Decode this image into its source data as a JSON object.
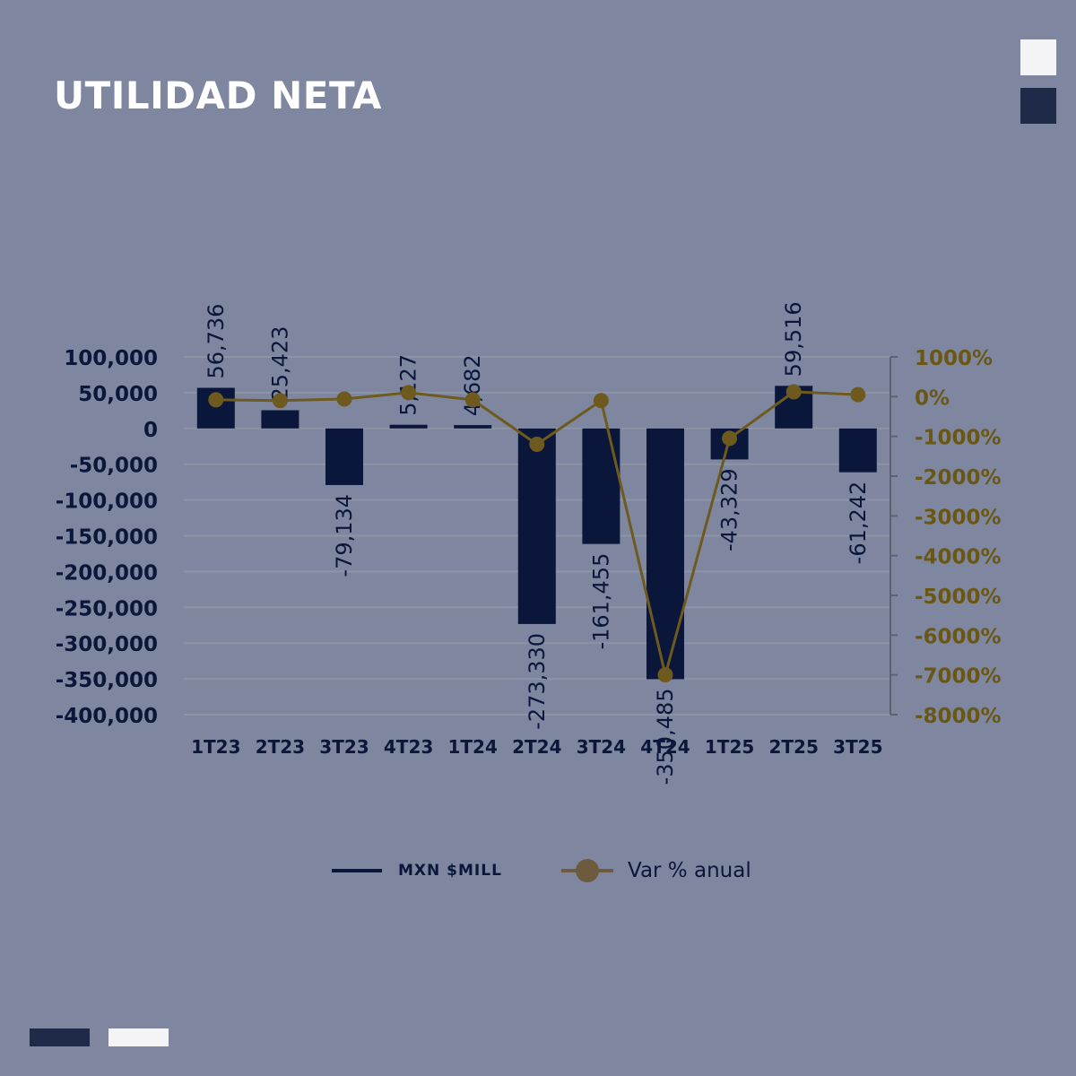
{
  "title": "UTILIDAD NETA",
  "colors": {
    "background": "#7e879f",
    "bar": "#0b173a",
    "line": "#6e5a1e",
    "marker": "#6e5a1e",
    "right_axis_text": "#6b5714",
    "left_axis_text": "#0b173a",
    "grid": "#8d94a6"
  },
  "chart_data": {
    "type": "bar",
    "title": "UTILIDAD NETA",
    "categories": [
      "1T23",
      "2T23",
      "3T23",
      "4T23",
      "1T24",
      "2T24",
      "3T24",
      "4T24",
      "1T25",
      "2T25",
      "3T25"
    ],
    "series": [
      {
        "name": "MXN $MILL",
        "type": "bar",
        "axis": "left",
        "values": [
          56736,
          25423,
          -79134,
          5127,
          4682,
          -273330,
          -161455,
          -350485,
          -43329,
          59516,
          -61242
        ],
        "labels": [
          "56,736",
          "25,423",
          "-79,134",
          "5,127",
          "4,682",
          "-273,330",
          "-161,455",
          "-350,485",
          "-43,329",
          "59,516",
          "-61,242"
        ]
      },
      {
        "name": "Var % anual",
        "type": "line",
        "axis": "right",
        "values": [
          -80,
          -100,
          -60,
          100,
          -80,
          -1200,
          -100,
          -7000,
          -1050,
          120,
          50
        ]
      }
    ],
    "left_axis": {
      "ylim": [
        -400000,
        100000
      ],
      "ticks": [
        100000,
        50000,
        0,
        -50000,
        -100000,
        -150000,
        -200000,
        -250000,
        -300000,
        -350000,
        -400000
      ],
      "tick_labels": [
        "100,000",
        "50,000",
        "0",
        "-50,000",
        "-100,000",
        "-150,000",
        "-200,000",
        "-250,000",
        "-300,000",
        "-350,000",
        "-400,000"
      ]
    },
    "right_axis": {
      "ylim": [
        -8000,
        1000
      ],
      "ticks": [
        1000,
        0,
        -1000,
        -2000,
        -3000,
        -4000,
        -5000,
        -6000,
        -7000,
        -8000
      ],
      "tick_labels": [
        "1000%",
        "0%",
        "-1000%",
        "-2000%",
        "-3000%",
        "-4000%",
        "-5000%",
        "-6000%",
        "-7000%",
        "-8000%"
      ]
    },
    "grid": true,
    "legend_position": "bottom"
  },
  "legend": {
    "bar_label": "MXN $MILL",
    "line_label": "Var % anual"
  }
}
